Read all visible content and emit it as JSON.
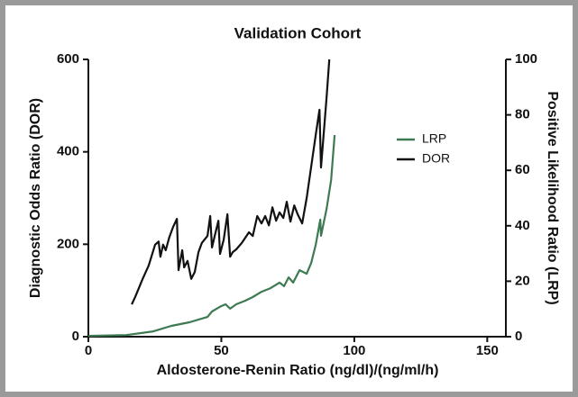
{
  "chart_data": {
    "type": "line",
    "title": "Validation Cohort",
    "x_label": "Aldosterone-Renin Ratio (ng/dl)/(ng/ml/h)",
    "y_label": "Diagnostic Odds Ratio (DOR)",
    "y2_label": "Positive Likelihood Ratio (LRP)",
    "xlim": [
      0,
      157
    ],
    "xticks": [
      0,
      50,
      100,
      150
    ],
    "ylim": [
      0,
      600
    ],
    "yticks": [
      0,
      200,
      400,
      600
    ],
    "y2lim": [
      0,
      100
    ],
    "y2ticks": [
      0,
      20,
      40,
      60,
      80,
      100
    ],
    "legend": "upper right",
    "series": [
      {
        "name": "LRP",
        "color": "#3d7a52",
        "axis": "y2",
        "x": [
          0,
          14.3,
          24.4,
          31.2,
          38,
          44.8,
          46.5,
          49.9,
          51.6,
          53.3,
          55.6,
          59,
          61.8,
          65.1,
          68.5,
          71.9,
          73.6,
          75.3,
          77,
          79.4,
          82.1,
          83.8,
          85.5,
          87.2,
          87.5,
          89.6,
          91.3,
          92.6
        ],
        "values": [
          0.3,
          0.6,
          1.9,
          3.9,
          5.2,
          7.1,
          9.1,
          11,
          11.7,
          10.1,
          11.7,
          13,
          14.3,
          16.2,
          17.5,
          19.5,
          18.2,
          21.4,
          19.5,
          24,
          22.7,
          26.6,
          33.1,
          42.2,
          36.4,
          46.1,
          56.5,
          72.7
        ]
      },
      {
        "name": "DOR",
        "color": "#111111",
        "x": [
          16.3,
          17.6,
          20.4,
          22.7,
          25.1,
          26.4,
          27.1,
          28.1,
          29.1,
          30.5,
          31.9,
          33.3,
          33.9,
          35.3,
          36,
          37.3,
          38.7,
          40,
          41.4,
          42.7,
          44.8,
          45.8,
          46.5,
          47.5,
          48.9,
          49.5,
          50.9,
          52.3,
          53.3,
          54.3,
          55.6,
          57.7,
          59,
          60.4,
          61.8,
          63.5,
          65.1,
          66.5,
          67.9,
          69.2,
          70.6,
          71.9,
          73.3,
          74.6,
          76,
          77.4,
          78.7,
          80.4,
          82.1,
          83.8,
          85.5,
          86.9,
          87.5,
          89.6,
          90.6
        ],
        "values": [
          70,
          86,
          125,
          154,
          199,
          206,
          173,
          199,
          187,
          216,
          238,
          255,
          144,
          187,
          150,
          164,
          125,
          140,
          183,
          203,
          218,
          261,
          193,
          218,
          251,
          179,
          210,
          265,
          173,
          183,
          189,
          203,
          214,
          226,
          218,
          261,
          245,
          261,
          241,
          280,
          251,
          269,
          257,
          292,
          249,
          284,
          265,
          245,
          300,
          368,
          436,
          491,
          366,
          518,
          600
        ]
      }
    ]
  }
}
